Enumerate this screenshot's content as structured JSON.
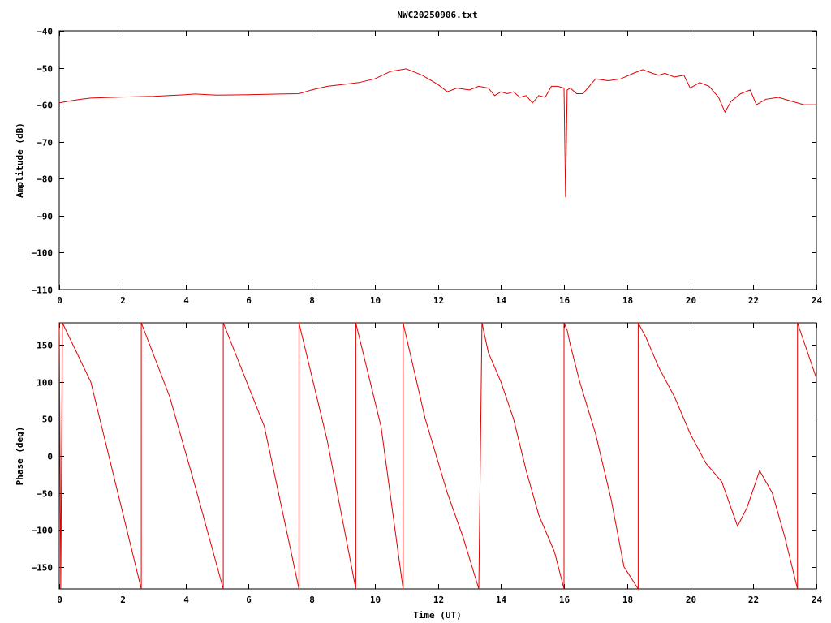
{
  "chart_data": [
    {
      "type": "line",
      "title": "NWC20250906.txt",
      "xlabel": "",
      "ylabel": "Amplitude (dB)",
      "xlim": [
        0,
        24
      ],
      "ylim": [
        -110,
        -40
      ],
      "xticks": [
        "0",
        "2",
        "4",
        "6",
        "8",
        "10",
        "12",
        "14",
        "16",
        "18",
        "20",
        "22",
        "24"
      ],
      "yticks": [
        "−40",
        "−50",
        "−60",
        "−70",
        "−80",
        "−90",
        "−100",
        "−110"
      ],
      "color": "#e00000",
      "series": [
        {
          "x": [
            0,
            0.3,
            0.7,
            1,
            2,
            3,
            4,
            4.3,
            5,
            6,
            7,
            7.6,
            8,
            8.5,
            9,
            9.5,
            10,
            10.5,
            11,
            11.5,
            12,
            12.3,
            12.6,
            13,
            13.3,
            13.6,
            13.8,
            14,
            14.2,
            14.4,
            14.6,
            14.8,
            15,
            15.2,
            15.4,
            15.6,
            15.8,
            16,
            16.05,
            16.1,
            16.2,
            16.4,
            16.6,
            16.8,
            17,
            17.4,
            17.8,
            18.2,
            18.5,
            18.8,
            19,
            19.2,
            19.5,
            19.8,
            20,
            20.3,
            20.6,
            20.9,
            21.1,
            21.3,
            21.6,
            21.9,
            22.1,
            22.4,
            22.8,
            23.2,
            23.6,
            24
          ],
          "y": [
            -59.5,
            -59,
            -58.5,
            -58.2,
            -57.9,
            -57.7,
            -57.3,
            -57.1,
            -57.4,
            -57.3,
            -57.1,
            -57,
            -56,
            -55,
            -54.5,
            -54,
            -53,
            -51,
            -50.3,
            -52,
            -54.5,
            -56.5,
            -55.5,
            -56,
            -55,
            -55.5,
            -57.5,
            -56.5,
            -57,
            -56.5,
            -58,
            -57.5,
            -59.5,
            -57.5,
            -58,
            -55,
            -55,
            -55.5,
            -85,
            -56,
            -55.5,
            -57,
            -57,
            -55,
            -53,
            -53.5,
            -53,
            -51.5,
            -50.5,
            -51.5,
            -52,
            -51.5,
            -52.5,
            -52,
            -55.5,
            -54,
            -55,
            -58,
            -62,
            -59,
            -57,
            -56,
            -60,
            -58.5,
            -58,
            -59,
            -60,
            -60
          ]
        }
      ]
    },
    {
      "type": "line",
      "title": "",
      "xlabel": "Time (UT)",
      "ylabel": "Phase (deg)",
      "xlim": [
        0,
        24
      ],
      "ylim": [
        -180,
        180
      ],
      "xticks": [
        "0",
        "2",
        "4",
        "6",
        "8",
        "10",
        "12",
        "14",
        "16",
        "18",
        "20",
        "22",
        "24"
      ],
      "yticks": [
        "150",
        "100",
        "50",
        "0",
        "−50",
        "−100",
        "−150"
      ],
      "color": "#e00000",
      "series": [
        {
          "x": [
            0,
            0.05,
            0.1,
            1,
            2.6,
            2.6,
            3.5,
            4.3,
            5.2,
            5.2,
            6.5,
            7.6,
            7.6,
            8.5,
            9.4,
            9.4,
            10.2,
            10.9,
            10.9,
            11.6,
            12.3,
            12.8,
            13.3,
            13.4,
            13.6,
            14,
            14.4,
            14.8,
            15.2,
            15.7,
            16,
            16,
            16.05,
            16.1,
            16.2,
            16.5,
            17,
            17.5,
            17.9,
            18.35,
            18.35,
            18.6,
            19,
            19.5,
            20,
            20.5,
            21,
            21.5,
            21.8,
            22.2,
            22.6,
            23,
            23.4,
            23.4,
            24
          ],
          "y": [
            180,
            -180,
            180,
            100,
            -180,
            180,
            80,
            -40,
            -180,
            180,
            40,
            -180,
            180,
            20,
            -180,
            180,
            40,
            -180,
            180,
            50,
            -50,
            -110,
            -180,
            180,
            140,
            100,
            50,
            -20,
            -80,
            -130,
            -180,
            180,
            175,
            170,
            150,
            100,
            30,
            -60,
            -150,
            -180,
            180,
            160,
            120,
            80,
            30,
            -10,
            -35,
            -95,
            -70,
            -20,
            -50,
            -110,
            -180,
            180,
            105
          ]
        }
      ]
    }
  ]
}
